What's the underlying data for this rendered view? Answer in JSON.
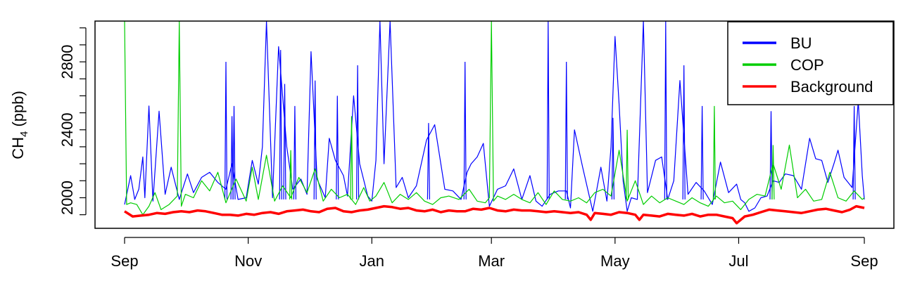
{
  "chart_data": {
    "type": "line",
    "ylabel": {
      "base": "CH",
      "sub": "4",
      "unit": " (ppb)"
    },
    "xlim": [
      0,
      365
    ],
    "ylim": [
      1820,
      3040
    ],
    "x_ticks": [
      {
        "label": "Sep",
        "x": 0
      },
      {
        "label": "Nov",
        "x": 61
      },
      {
        "label": "Jan",
        "x": 122
      },
      {
        "label": "Mar",
        "x": 181
      },
      {
        "label": "May",
        "x": 242
      },
      {
        "label": "Jul",
        "x": 303
      },
      {
        "label": "Sep",
        "x": 365
      }
    ],
    "y_ticks": [
      2000,
      2400,
      2800
    ],
    "legend": {
      "position": "top-right"
    },
    "series": [
      {
        "name": "BU",
        "color": "#0000ff",
        "x": [
          0,
          3,
          5,
          7,
          9,
          10,
          12,
          14,
          17,
          20,
          23,
          27,
          31,
          34,
          38,
          42,
          46,
          50,
          53,
          56,
          60,
          63,
          66,
          68,
          70,
          73,
          76,
          80,
          83,
          87,
          90,
          92,
          95,
          99,
          101,
          104,
          108,
          110,
          113,
          116,
          120,
          122,
          124,
          126,
          128,
          131,
          134,
          137,
          140,
          144,
          149,
          153,
          158,
          162,
          166,
          169,
          171,
          174,
          177,
          180,
          184,
          188,
          192,
          196,
          200,
          203,
          206,
          210,
          214,
          218,
          220,
          222,
          226,
          231,
          235,
          238,
          240,
          242,
          244,
          246,
          248,
          250,
          253,
          256,
          258,
          262,
          265,
          268,
          271,
          274,
          278,
          282,
          286,
          290,
          294,
          298,
          302,
          304,
          306,
          308,
          311,
          314,
          317,
          320,
          323,
          326,
          330,
          334,
          338,
          341,
          344,
          347,
          350,
          352,
          355,
          359,
          362,
          364,
          365
        ],
        "values": [
          1960,
          2130,
          1990,
          2050,
          2240,
          2000,
          2540,
          1980,
          2510,
          2020,
          2180,
          1990,
          2140,
          2030,
          2120,
          2150,
          2090,
          2050,
          2200,
          1990,
          2000,
          2220,
          2080,
          2300,
          3040,
          2000,
          2890,
          2300,
          2050,
          2110,
          2020,
          2860,
          2110,
          2000,
          2350,
          2220,
          2130,
          2010,
          2600,
          2200,
          2010,
          1980,
          2220,
          3040,
          2200,
          3040,
          2060,
          2120,
          2000,
          2070,
          2340,
          2430,
          2050,
          2040,
          1990,
          2150,
          2200,
          2240,
          2320,
          1950,
          2050,
          2070,
          2170,
          1990,
          2130,
          1980,
          1950,
          2020,
          2040,
          2040,
          1940,
          2400,
          2180,
          1920,
          2180,
          1980,
          2300,
          2950,
          2550,
          2100,
          1920,
          2000,
          1990,
          3040,
          2030,
          2220,
          2240,
          1990,
          2100,
          2690,
          2020,
          2090,
          2040,
          1960,
          2210,
          2030,
          2080,
          1990,
          1970,
          1920,
          1940,
          2000,
          2010,
          2100,
          2090,
          2140,
          2130,
          2050,
          2350,
          2230,
          2220,
          2090,
          2200,
          2280,
          2120,
          2060,
          2570,
          2130,
          1990
        ],
        "spikes": [
          {
            "x": 50,
            "y": 2800
          },
          {
            "x": 53,
            "y": 2480
          },
          {
            "x": 54,
            "y": 2540
          },
          {
            "x": 77,
            "y": 2870
          },
          {
            "x": 79,
            "y": 2670
          },
          {
            "x": 84,
            "y": 2540
          },
          {
            "x": 94,
            "y": 2690
          },
          {
            "x": 105,
            "y": 2600
          },
          {
            "x": 115,
            "y": 2780
          },
          {
            "x": 150,
            "y": 2440
          },
          {
            "x": 168,
            "y": 2800
          },
          {
            "x": 209,
            "y": 3040
          },
          {
            "x": 218,
            "y": 2800
          },
          {
            "x": 241,
            "y": 2470
          },
          {
            "x": 267,
            "y": 3040
          },
          {
            "x": 276,
            "y": 2780
          },
          {
            "x": 285,
            "y": 2540
          },
          {
            "x": 319,
            "y": 2510
          },
          {
            "x": 360,
            "y": 2540
          }
        ]
      },
      {
        "name": "COP",
        "color": "#00cd00",
        "x": [
          0,
          1,
          3,
          6,
          9,
          12,
          15,
          18,
          22,
          26,
          27,
          28,
          30,
          34,
          38,
          42,
          46,
          50,
          55,
          60,
          63,
          66,
          70,
          74,
          78,
          82,
          86,
          90,
          94,
          98,
          102,
          106,
          110,
          114,
          118,
          121,
          124,
          128,
          132,
          136,
          140,
          144,
          148,
          152,
          156,
          160,
          165,
          170,
          174,
          178,
          180,
          181,
          182,
          184,
          188,
          192,
          196,
          200,
          204,
          208,
          212,
          216,
          220,
          224,
          228,
          232,
          236,
          240,
          244,
          248,
          252,
          256,
          260,
          264,
          268,
          272,
          276,
          280,
          284,
          288,
          292,
          296,
          300,
          304,
          308,
          312,
          316,
          320,
          324,
          328,
          332,
          336,
          340,
          344,
          348,
          352,
          356,
          360,
          364,
          365
        ],
        "values": [
          3040,
          1960,
          1970,
          1960,
          1900,
          1950,
          2030,
          1930,
          1960,
          2010,
          3040,
          1950,
          2020,
          2000,
          2100,
          2040,
          2150,
          1970,
          2110,
          1980,
          2180,
          1990,
          2250,
          1980,
          2070,
          2000,
          2120,
          2030,
          2170,
          1980,
          2050,
          2000,
          2020,
          1960,
          2060,
          1980,
          2010,
          2090,
          1970,
          2020,
          1990,
          2030,
          1980,
          1960,
          2000,
          2010,
          1990,
          2050,
          1980,
          1970,
          2000,
          3040,
          1980,
          2010,
          1990,
          2020,
          1990,
          1970,
          2030,
          1960,
          2040,
          1990,
          1980,
          2000,
          1970,
          2030,
          2050,
          2010,
          2280,
          1980,
          2100,
          1960,
          2010,
          1970,
          2000,
          1980,
          1960,
          2000,
          1970,
          1950,
          2010,
          1970,
          1980,
          1930,
          1990,
          2020,
          2010,
          2200,
          2050,
          2310,
          2000,
          2050,
          1980,
          1990,
          2150,
          2000,
          1980,
          2040,
          1990,
          2000
        ],
        "spikes": [
          {
            "x": 82,
            "y": 2280
          },
          {
            "x": 112,
            "y": 2480
          },
          {
            "x": 248,
            "y": 2400
          },
          {
            "x": 291,
            "y": 2540
          },
          {
            "x": 320,
            "y": 2310
          }
        ]
      },
      {
        "name": "Background",
        "color": "#ff0000",
        "x": [
          0,
          4,
          8,
          12,
          16,
          20,
          24,
          28,
          32,
          36,
          40,
          44,
          48,
          52,
          56,
          60,
          64,
          68,
          72,
          76,
          80,
          84,
          88,
          92,
          96,
          100,
          104,
          108,
          112,
          116,
          120,
          124,
          128,
          132,
          136,
          140,
          144,
          148,
          152,
          156,
          160,
          164,
          168,
          172,
          176,
          180,
          184,
          188,
          192,
          196,
          200,
          204,
          208,
          212,
          216,
          220,
          224,
          228,
          230,
          232,
          236,
          240,
          244,
          248,
          252,
          254,
          256,
          260,
          264,
          268,
          272,
          276,
          280,
          284,
          288,
          292,
          296,
          300,
          302,
          304,
          306,
          310,
          314,
          318,
          322,
          326,
          330,
          334,
          338,
          342,
          346,
          350,
          354,
          358,
          361,
          365
        ],
        "values": [
          1920,
          1890,
          1895,
          1900,
          1910,
          1905,
          1915,
          1920,
          1915,
          1925,
          1920,
          1910,
          1900,
          1900,
          1895,
          1905,
          1900,
          1910,
          1915,
          1905,
          1920,
          1925,
          1930,
          1920,
          1915,
          1935,
          1940,
          1920,
          1915,
          1925,
          1930,
          1940,
          1950,
          1945,
          1935,
          1940,
          1925,
          1920,
          1930,
          1915,
          1925,
          1920,
          1920,
          1935,
          1930,
          1940,
          1925,
          1920,
          1930,
          1925,
          1925,
          1920,
          1915,
          1920,
          1915,
          1910,
          1915,
          1900,
          1870,
          1910,
          1905,
          1900,
          1915,
          1910,
          1900,
          1870,
          1900,
          1895,
          1890,
          1905,
          1900,
          1895,
          1905,
          1890,
          1900,
          1900,
          1890,
          1880,
          1850,
          1870,
          1890,
          1900,
          1915,
          1930,
          1925,
          1920,
          1915,
          1910,
          1920,
          1930,
          1935,
          1925,
          1915,
          1930,
          1950,
          1940
        ]
      }
    ]
  }
}
